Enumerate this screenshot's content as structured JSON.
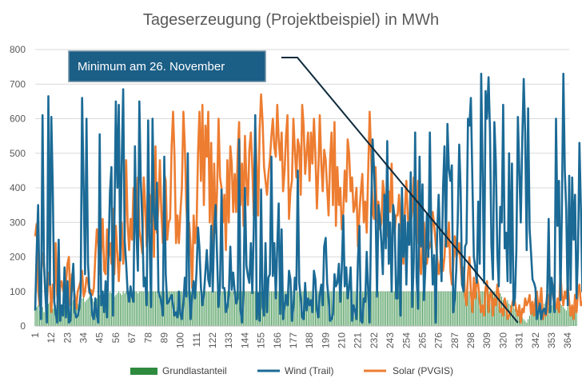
{
  "chart_data": {
    "type": "line",
    "title": "Tageserzeugung (Projektbeispiel) in MWh",
    "xlabel": "",
    "ylabel": "",
    "xlim": [
      1,
      365
    ],
    "ylim": [
      0,
      800
    ],
    "y_ticks": [
      "0",
      "100",
      "200",
      "300",
      "400",
      "500",
      "600",
      "700",
      "800"
    ],
    "x_ticks": [
      "1",
      "12",
      "23",
      "34",
      "45",
      "56",
      "67",
      "78",
      "89",
      "100",
      "111",
      "122",
      "133",
      "144",
      "155",
      "166",
      "177",
      "188",
      "199",
      "210",
      "221",
      "232",
      "243",
      "254",
      "265",
      "276",
      "287",
      "298",
      "309",
      "320",
      "331",
      "342",
      "353",
      "364"
    ],
    "grid": "horizontal",
    "legend_position": "bottom",
    "annotation": {
      "text": "Minimum am 26. November",
      "target_day": 330,
      "target_value": 10
    },
    "series": [
      {
        "name": "Grundlastanteil",
        "kind": "bar",
        "color": "#2e8b3e",
        "values": [
          50,
          55,
          60,
          45,
          50,
          55,
          40,
          60,
          55,
          65,
          70,
          60,
          50,
          55,
          60,
          65,
          70,
          75,
          60,
          55,
          60,
          70,
          75,
          80,
          65,
          70,
          75,
          80,
          70,
          65,
          70,
          75,
          80,
          85,
          70,
          75,
          80,
          85,
          90,
          80,
          70,
          75,
          80,
          85,
          90,
          95,
          90,
          85,
          80,
          90,
          95,
          100,
          95,
          90,
          85,
          90,
          95,
          100,
          95,
          90,
          100,
          95,
          100,
          95,
          100,
          100,
          95,
          100,
          100,
          100,
          95,
          100,
          100,
          100,
          100,
          100,
          100,
          100,
          100,
          100,
          100,
          100,
          100,
          100,
          100,
          100,
          100,
          100,
          100,
          100,
          100,
          100,
          100,
          100,
          100,
          100,
          100,
          100,
          100,
          100,
          100,
          100,
          100,
          100,
          100,
          100,
          100,
          100,
          100,
          100,
          100,
          100,
          100,
          100,
          100,
          100,
          100,
          100,
          100,
          100,
          100,
          100,
          100,
          100,
          100,
          100,
          100,
          100,
          100,
          100,
          100,
          100,
          100,
          100,
          100,
          100,
          100,
          100,
          100,
          100,
          100,
          100,
          100,
          100,
          100,
          100,
          100,
          100,
          100,
          100,
          100,
          100,
          100,
          100,
          100,
          100,
          100,
          100,
          100,
          100,
          100,
          100,
          100,
          100,
          100,
          100,
          100,
          100,
          100,
          100,
          100,
          100,
          100,
          100,
          100,
          100,
          100,
          100,
          100,
          100,
          100,
          100,
          100,
          100,
          100,
          100,
          100,
          100,
          100,
          100,
          100,
          100,
          100,
          100,
          100,
          100,
          100,
          100,
          100,
          100,
          100,
          100,
          100,
          100,
          100,
          100,
          100,
          100,
          100,
          100,
          100,
          100,
          100,
          100,
          100,
          100,
          100,
          100,
          100,
          100,
          100,
          100,
          100,
          100,
          100,
          100,
          100,
          100,
          100,
          100,
          100,
          100,
          100,
          100,
          100,
          100,
          100,
          100,
          100,
          100,
          100,
          100,
          100,
          100,
          100,
          100,
          100,
          100,
          100,
          100,
          100,
          100,
          100,
          100,
          100,
          100,
          100,
          100,
          100,
          100,
          100,
          100,
          100,
          100,
          100,
          100,
          100,
          100,
          100,
          100,
          100,
          100,
          100,
          100,
          100,
          100,
          100,
          100,
          100,
          100,
          100,
          100,
          100,
          100,
          100,
          100,
          100,
          100,
          100,
          100,
          100,
          100,
          100,
          100,
          100,
          100,
          100,
          100,
          100,
          100,
          100,
          100,
          100,
          100,
          100,
          100,
          100,
          100,
          100,
          100,
          100,
          100,
          100,
          100,
          100,
          100,
          100,
          95,
          85,
          75,
          80,
          70,
          75,
          65,
          60,
          70,
          55,
          50,
          45,
          40,
          35,
          30,
          25,
          20,
          15,
          10,
          20,
          30,
          40,
          50,
          45,
          55,
          60,
          55,
          50,
          60,
          55,
          65,
          70,
          60,
          55,
          50,
          60,
          70,
          65,
          55,
          60,
          70,
          65,
          60,
          55,
          50,
          45,
          55,
          60,
          50,
          45,
          55,
          50,
          45
        ]
      },
      {
        "name": "Wind (Trail)",
        "kind": "line",
        "color": "#1b6a96",
        "values": [
          45,
          210,
          350,
          90,
          20,
          610,
          180,
          90,
          10,
          665,
          120,
          605,
          400,
          70,
          35,
          10,
          250,
          15,
          60,
          30,
          170,
          25,
          130,
          10,
          15,
          120,
          180,
          40,
          25,
          30,
          50,
          95,
          660,
          400,
          150,
          600,
          180,
          100,
          90,
          30,
          20,
          80,
          30,
          10,
          555,
          60,
          100,
          40,
          130,
          25,
          220,
          390,
          460,
          30,
          300,
          650,
          400,
          640,
          190,
          480,
          685,
          250,
          180,
          100,
          70,
          115,
          85,
          70,
          520,
          270,
          160,
          650,
          420,
          300,
          115,
          140,
          60,
          595,
          250,
          55,
          600,
          330,
          280,
          415,
          100,
          85,
          70,
          30,
          490,
          150,
          65,
          70,
          80,
          90,
          60,
          30,
          40,
          25,
          100,
          35,
          20,
          65,
          140,
          85,
          500,
          100,
          20,
          90,
          130,
          80,
          160,
          285,
          225,
          110,
          60,
          90,
          155,
          220,
          135,
          115,
          290,
          100,
          280,
          350,
          195,
          55,
          115,
          395,
          110,
          110,
          40,
          55,
          90,
          230,
          105,
          155,
          100,
          65,
          80,
          540,
          45,
          10,
          95,
          400,
          175,
          145,
          125,
          240,
          95,
          280,
          610,
          20,
          95,
          15,
          395,
          55,
          30,
          240,
          40,
          140,
          150,
          490,
          145,
          240,
          80,
          230,
          355,
          35,
          280,
          20,
          60,
          90,
          60,
          160,
          135,
          15,
          55,
          140,
          105,
          450,
          125,
          80,
          25,
          20,
          125,
          45,
          80,
          60,
          75,
          40,
          160,
          135,
          45,
          25,
          90,
          120,
          60,
          230,
          255,
          125,
          80,
          15,
          20,
          35,
          150,
          115,
          125,
          180,
          70,
          165,
          320,
          115,
          170,
          80,
          110,
          170,
          15,
          60,
          45,
          20,
          190,
          290,
          15,
          10,
          80,
          70,
          215,
          100,
          10,
          330,
          540,
          450,
          335,
          85,
          350,
          310,
          240,
          150,
          380,
          225,
          535,
          180,
          300,
          100,
          350,
          315,
          80,
          80,
          295,
          30,
          400,
          200,
          320,
          120,
          300,
          235,
          445,
          55,
          185,
          560,
          140,
          50,
          490,
          230,
          410,
          75,
          175,
          325,
          200,
          560,
          270,
          120,
          205,
          10,
          270,
          380,
          255,
          130,
          400,
          520,
          230,
          585,
          455,
          420,
          465,
          40,
          80,
          160,
          300,
          525,
          395,
          120,
          100,
          230,
          240,
          600,
          580,
          660,
          420,
          200,
          170,
          125,
          360,
          180,
          730,
          445,
          125,
          680,
          600,
          720,
          565,
          235,
          135,
          590,
          475,
          210,
          115,
          345,
          300,
          640,
          225,
          270,
          130,
          500,
          125,
          470,
          60,
          80,
          220,
          605,
          450,
          300,
          540,
          715,
          560,
          220,
          630,
          280,
          210,
          135,
          125,
          110,
          20,
          40,
          65,
          20,
          45,
          50,
          35,
          95,
          310,
          40,
          140,
          100,
          40,
          600,
          290,
          420,
          75,
          330,
          730,
          450,
          335,
          60,
          435,
          105,
          430,
          250,
          380,
          80,
          215,
          530,
          330,
          100,
          215,
          290,
          75
        ]
      },
      {
        "name": "Solar (PVGIS)",
        "kind": "line",
        "color": "#ed7d31",
        "values": [
          260,
          295,
          105,
          60,
          140,
          210,
          180,
          90,
          60,
          155,
          130,
          40,
          120,
          80,
          240,
          90,
          60,
          110,
          130,
          105,
          90,
          125,
          180,
          200,
          60,
          150,
          110,
          90,
          50,
          100,
          115,
          130,
          160,
          85,
          100,
          140,
          130,
          95,
          105,
          90,
          110,
          200,
          280,
          240,
          150,
          220,
          310,
          160,
          150,
          280,
          200,
          240,
          180,
          340,
          150,
          290,
          210,
          130,
          230,
          300,
          180,
          250,
          480,
          300,
          220,
          310,
          250,
          400,
          330,
          300,
          430,
          280,
          250,
          210,
          430,
          350,
          230,
          280,
          380,
          300,
          480,
          200,
          520,
          270,
          350,
          480,
          330,
          240,
          440,
          420,
          250,
          300,
          310,
          520,
          620,
          490,
          240,
          320,
          240,
          330,
          400,
          620,
          520,
          350,
          270,
          300,
          230,
          110,
          320,
          240,
          290,
          500,
          620,
          420,
          640,
          350,
          580,
          490,
          620,
          300,
          530,
          230,
          470,
          270,
          400,
          600,
          430,
          400,
          300,
          380,
          220,
          480,
          300,
          520,
          470,
          330,
          440,
          330,
          500,
          590,
          350,
          470,
          290,
          550,
          420,
          350,
          510,
          560,
          460,
          320,
          580,
          460,
          320,
          570,
          670,
          590,
          460,
          420,
          380,
          440,
          480,
          550,
          600,
          520,
          490,
          640,
          540,
          480,
          560,
          390,
          450,
          550,
          610,
          310,
          390,
          420,
          600,
          510,
          430,
          540,
          520,
          380,
          640,
          580,
          440,
          500,
          560,
          420,
          560,
          470,
          600,
          500,
          340,
          450,
          610,
          470,
          390,
          510,
          480,
          400,
          320,
          480,
          560,
          350,
          590,
          290,
          460,
          350,
          400,
          280,
          330,
          450,
          360,
          540,
          500,
          390,
          430,
          330,
          350,
          400,
          230,
          330,
          390,
          440,
          300,
          360,
          270,
          450,
          620,
          490,
          330,
          310,
          460,
          300,
          360,
          280,
          300,
          420,
          380,
          320,
          260,
          390,
          330,
          470,
          280,
          270,
          320,
          320,
          380,
          310,
          230,
          180,
          340,
          420,
          320,
          250,
          300,
          330,
          430,
          310,
          240,
          420,
          200,
          150,
          260,
          300,
          200,
          180,
          220,
          230,
          250,
          330,
          290,
          240,
          200,
          150,
          180,
          210,
          160,
          200,
          280,
          230,
          300,
          160,
          120,
          180,
          260,
          200,
          210,
          240,
          180,
          120,
          170,
          90,
          60,
          150,
          200,
          100,
          40,
          140,
          80,
          140,
          120,
          70,
          40,
          60,
          30,
          110,
          130,
          40,
          90,
          100,
          30,
          80,
          60,
          120,
          90,
          40,
          50,
          30,
          80,
          60,
          20,
          30,
          40,
          60,
          80,
          70,
          45,
          30,
          60,
          10,
          50,
          40,
          80,
          60,
          70,
          90,
          35,
          70,
          30,
          80,
          100,
          50,
          70,
          110,
          20,
          50,
          30,
          40,
          90,
          60,
          100,
          120,
          60,
          50,
          80,
          40,
          150,
          90,
          60,
          100,
          80,
          120,
          70,
          30,
          60,
          20,
          90,
          40,
          100,
          120,
          60,
          70,
          40,
          20,
          60,
          80,
          130,
          70,
          40,
          110,
          90,
          60
        ]
      }
    ]
  }
}
